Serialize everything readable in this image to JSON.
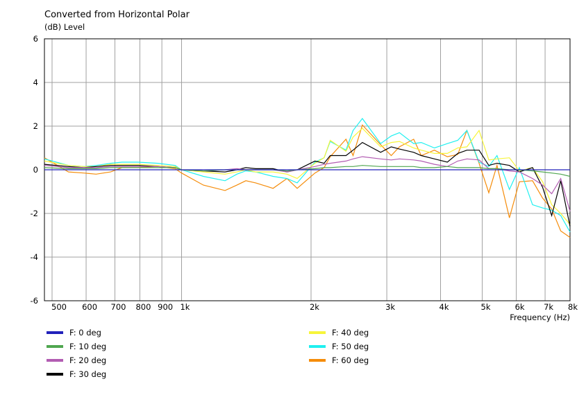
{
  "chart_data": {
    "type": "line",
    "title": "Converted from Horizontal Polar",
    "ylabel": "(dB)  Level",
    "xlabel": "Frequency  (Hz)",
    "xscale": "log",
    "xlim": [
      480,
      8000
    ],
    "ylim": [
      -6,
      6
    ],
    "grid": true,
    "legend_position": "bottom",
    "yticks": [
      {
        "value": 6,
        "label": "6"
      },
      {
        "value": 4,
        "label": "4"
      },
      {
        "value": 2,
        "label": "2"
      },
      {
        "value": 0,
        "label": "0"
      },
      {
        "value": -2,
        "label": "-2"
      },
      {
        "value": -4,
        "label": "-4"
      },
      {
        "value": -6,
        "label": "-6"
      }
    ],
    "xticks": [
      {
        "value": 500,
        "label": "500"
      },
      {
        "value": 600,
        "label": "600"
      },
      {
        "value": 700,
        "label": "700"
      },
      {
        "value": 800,
        "label": "800"
      },
      {
        "value": 900,
        "label": "900"
      },
      {
        "value": 1000,
        "label": "1k"
      },
      {
        "value": 2000,
        "label": "2k"
      },
      {
        "value": 3000,
        "label": "3k"
      },
      {
        "value": 4000,
        "label": "4k"
      },
      {
        "value": 5000,
        "label": "5k"
      },
      {
        "value": 6000,
        "label": "6k"
      },
      {
        "value": 7000,
        "label": "7k"
      },
      {
        "value": 8000,
        "label": "8k"
      }
    ],
    "x": [
      480,
      546,
      593,
      633,
      684,
      727,
      792,
      880,
      966,
      1000,
      1124,
      1262,
      1345,
      1411,
      1487,
      1632,
      1758,
      1857,
      2042,
      2145,
      2216,
      2411,
      2504,
      2632,
      2903,
      3072,
      3210,
      3464,
      3607,
      3871,
      4149,
      4387,
      4606,
      4917,
      5179,
      5412,
      5784,
      6099,
      6545,
      6907,
      7253,
      7612,
      8000
    ],
    "series": [
      {
        "name": "F: 0 deg",
        "color": "#2222bb",
        "values": [
          0,
          0,
          0,
          0,
          0,
          0,
          0,
          0,
          0,
          0,
          0,
          0,
          0,
          0,
          0,
          0,
          0,
          0,
          0,
          0,
          0,
          0,
          0,
          0,
          0,
          0,
          0,
          0,
          0,
          0,
          0,
          0,
          0,
          0,
          0,
          0,
          0,
          0,
          0,
          0,
          0,
          0,
          0
        ]
      },
      {
        "name": "F: 10 deg",
        "color": "#4fa64f",
        "values": [
          0.1,
          0.05,
          0.05,
          0.05,
          0.1,
          0.1,
          0.1,
          0.1,
          0.1,
          0,
          -0.05,
          0,
          0,
          0,
          0,
          0,
          -0.05,
          0,
          0.05,
          0.1,
          0.1,
          0.15,
          0.15,
          0.2,
          0.15,
          0.15,
          0.15,
          0.15,
          0.1,
          0.1,
          0.15,
          0.1,
          0.1,
          0.1,
          0.05,
          0.05,
          0,
          0,
          -0.05,
          -0.1,
          -0.15,
          -0.2,
          -0.3
        ]
      },
      {
        "name": "F: 20 deg",
        "color": "#b25cb2",
        "values": [
          0.2,
          0.1,
          0.1,
          0.1,
          0.15,
          0.15,
          0.15,
          0.15,
          0.1,
          0,
          -0.05,
          0,
          0.05,
          0,
          0,
          0,
          -0.1,
          0,
          0.15,
          0.25,
          0.3,
          0.4,
          0.5,
          0.6,
          0.5,
          0.45,
          0.5,
          0.45,
          0.4,
          0.25,
          0.15,
          0.4,
          0.5,
          0.45,
          0.05,
          0.05,
          -0.05,
          -0.1,
          -0.4,
          -0.7,
          -1.1,
          -0.4,
          -1.9
        ]
      },
      {
        "name": "F: 30 deg",
        "color": "#000000",
        "values": [
          0.25,
          0.15,
          0.1,
          0.15,
          0.2,
          0.2,
          0.2,
          0.15,
          0.1,
          0,
          -0.05,
          -0.1,
          0,
          0.1,
          0.05,
          0.05,
          -0.1,
          0,
          0.4,
          0.3,
          0.65,
          0.65,
          0.9,
          1.25,
          0.8,
          1.05,
          0.95,
          0.8,
          0.65,
          0.5,
          0.35,
          0.75,
          0.9,
          0.9,
          0.2,
          0.3,
          0.2,
          -0.1,
          0.1,
          -0.8,
          -2.1,
          -0.5,
          -2.6
        ]
      },
      {
        "name": "F: 40 deg",
        "color": "#f7f53a",
        "values": [
          0.4,
          0.2,
          0.15,
          0.15,
          0.25,
          0.25,
          0.25,
          0.2,
          0.15,
          0,
          -0.1,
          -0.2,
          -0.1,
          0,
          -0.1,
          -0.1,
          -0.2,
          -0.4,
          0.3,
          0.55,
          1.35,
          0.85,
          1.5,
          1.9,
          1.05,
          1.25,
          1.3,
          1.0,
          0.9,
          0.75,
          0.75,
          1.0,
          1.05,
          1.8,
          0.45,
          0.5,
          0.55,
          -0.05,
          0.1,
          -0.55,
          -1.6,
          -2.0,
          -2.5
        ]
      },
      {
        "name": "F: 50 deg",
        "color": "#1ff0f0",
        "values": [
          0.5,
          0.2,
          0.15,
          0.2,
          0.3,
          0.35,
          0.35,
          0.3,
          0.2,
          0,
          -0.3,
          -0.5,
          -0.2,
          -0.05,
          -0.1,
          -0.3,
          -0.4,
          -0.6,
          0.35,
          0.55,
          1.3,
          0.9,
          1.8,
          2.35,
          1.2,
          1.55,
          1.7,
          1.2,
          1.25,
          1.0,
          1.2,
          1.35,
          1.8,
          0.35,
          0.15,
          0.65,
          -0.9,
          0.1,
          -1.6,
          -1.75,
          -1.85,
          -2.1,
          -2.85
        ]
      },
      {
        "name": "F: 60 deg",
        "color": "#f58c0a",
        "values": [
          0.55,
          -0.1,
          -0.15,
          -0.2,
          -0.1,
          0.1,
          0.1,
          0.15,
          0.05,
          -0.15,
          -0.7,
          -0.95,
          -0.7,
          -0.5,
          -0.6,
          -0.85,
          -0.4,
          -0.85,
          -0.15,
          0.1,
          0.6,
          1.4,
          0.65,
          2.05,
          1.15,
          0.65,
          1.05,
          1.4,
          0.65,
          0.9,
          0.6,
          0.7,
          1.8,
          0.3,
          -1.05,
          0.2,
          -2.2,
          -0.55,
          -0.5,
          -1.3,
          -1.8,
          -2.8,
          -3.1
        ]
      }
    ]
  }
}
